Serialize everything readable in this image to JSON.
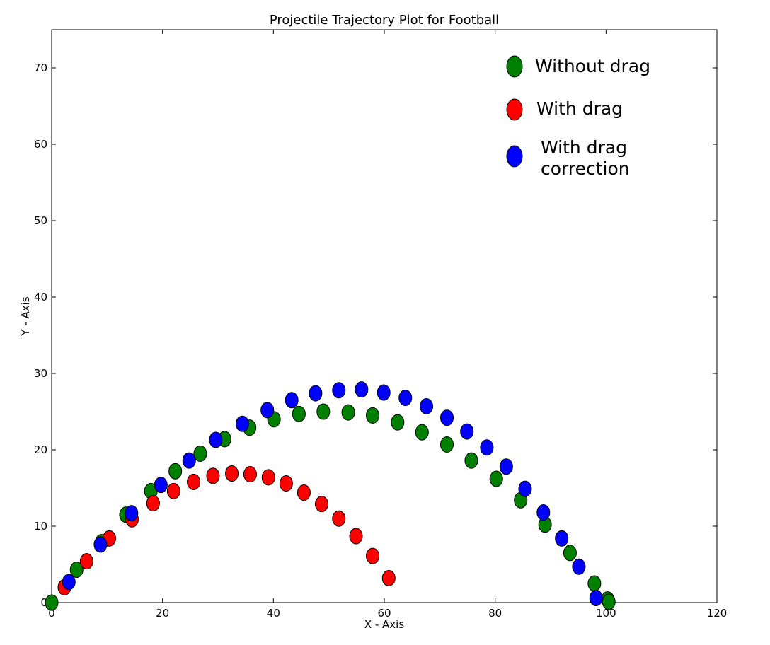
{
  "chart_data": {
    "type": "scatter",
    "title": "Projectile Trajectory Plot for Football",
    "xlabel": "X - Axis",
    "ylabel": "Y - Axis",
    "xlim": [
      0,
      120
    ],
    "ylim": [
      0,
      75
    ],
    "xticks": [
      0,
      20,
      40,
      60,
      80,
      100,
      120
    ],
    "yticks": [
      0,
      10,
      20,
      30,
      40,
      50,
      60,
      70
    ],
    "grid": false,
    "legend_position": "top-right",
    "series": [
      {
        "name": "Without drag",
        "color": "#008000",
        "points": [
          [
            0,
            0
          ],
          [
            4.5,
            4.3
          ],
          [
            9,
            7.9
          ],
          [
            13.4,
            11.5
          ],
          [
            17.9,
            14.6
          ],
          [
            22.3,
            17.2
          ],
          [
            26.8,
            19.5
          ],
          [
            31.2,
            21.4
          ],
          [
            35.7,
            22.9
          ],
          [
            40.1,
            24.0
          ],
          [
            44.6,
            24.7
          ],
          [
            49,
            25.0
          ],
          [
            53.5,
            24.9
          ],
          [
            57.9,
            24.5
          ],
          [
            62.4,
            23.6
          ],
          [
            66.8,
            22.3
          ],
          [
            71.3,
            20.7
          ],
          [
            75.7,
            18.6
          ],
          [
            80.2,
            16.2
          ],
          [
            84.6,
            13.4
          ],
          [
            89,
            10.2
          ],
          [
            93.5,
            6.5
          ],
          [
            97.9,
            2.5
          ],
          [
            100.3,
            0.4
          ],
          [
            100.5,
            0.1
          ]
        ]
      },
      {
        "name": "With drag",
        "color": "#ff0000",
        "points": [
          [
            2.3,
            2.0
          ],
          [
            6.3,
            5.4
          ],
          [
            10.4,
            8.4
          ],
          [
            14.5,
            10.9
          ],
          [
            18.3,
            13.0
          ],
          [
            22,
            14.6
          ],
          [
            25.6,
            15.8
          ],
          [
            29.1,
            16.6
          ],
          [
            32.5,
            16.9
          ],
          [
            35.8,
            16.8
          ],
          [
            39.1,
            16.4
          ],
          [
            42.3,
            15.6
          ],
          [
            45.5,
            14.4
          ],
          [
            48.7,
            12.9
          ],
          [
            51.8,
            11.0
          ],
          [
            54.9,
            8.7
          ],
          [
            57.9,
            6.1
          ],
          [
            60.8,
            3.2
          ]
        ]
      },
      {
        "name": "With drag\ncorrection",
        "color": "#0000ff",
        "points": [
          [
            3.1,
            2.7
          ],
          [
            8.8,
            7.6
          ],
          [
            14.4,
            11.7
          ],
          [
            19.7,
            15.4
          ],
          [
            24.8,
            18.6
          ],
          [
            29.6,
            21.3
          ],
          [
            34.4,
            23.4
          ],
          [
            38.9,
            25.2
          ],
          [
            43.3,
            26.5
          ],
          [
            47.6,
            27.4
          ],
          [
            51.8,
            27.8
          ],
          [
            55.9,
            27.9
          ],
          [
            59.9,
            27.5
          ],
          [
            63.8,
            26.8
          ],
          [
            67.6,
            25.7
          ],
          [
            71.3,
            24.2
          ],
          [
            74.9,
            22.4
          ],
          [
            78.5,
            20.3
          ],
          [
            82,
            17.8
          ],
          [
            85.4,
            14.9
          ],
          [
            88.7,
            11.8
          ],
          [
            92,
            8.4
          ],
          [
            95.1,
            4.7
          ],
          [
            98.2,
            0.6
          ]
        ]
      }
    ]
  }
}
